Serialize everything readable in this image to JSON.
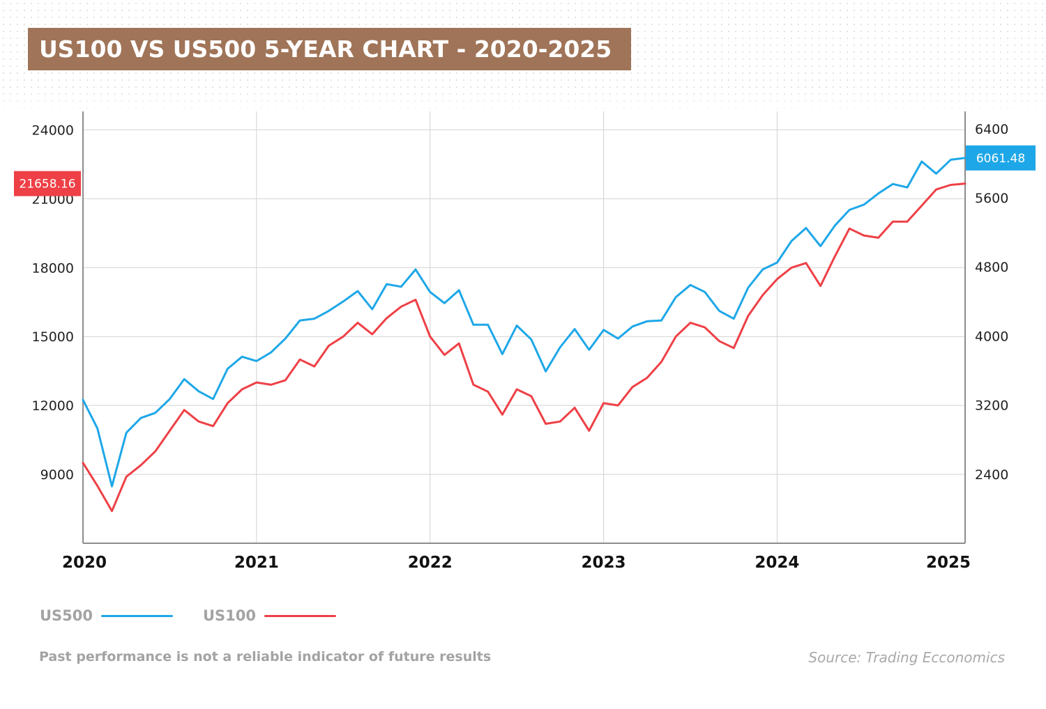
{
  "title": "US100 VS US500 5-YEAR CHART - 2020-2025",
  "legend": [
    {
      "label": "US500",
      "color": "#1ea7e8"
    },
    {
      "label": "US100",
      "color": "#ee4046"
    }
  ],
  "footer": {
    "disclaimer": "Past performance is not a reliable indicator of future results",
    "source": "Source: Trading Ecconomics"
  },
  "chart_data": {
    "type": "line",
    "grid": true,
    "x_ticks": [
      "2020",
      "2021",
      "2022",
      "2023",
      "2024",
      "2025"
    ],
    "x_range": [
      "2020-01",
      "2025-02"
    ],
    "y_left": {
      "series": "US100",
      "ticks": [
        9000,
        12000,
        15000,
        18000,
        21000,
        24000
      ],
      "range": [
        6000,
        24800
      ]
    },
    "y_right": {
      "series": "US500",
      "ticks": [
        2400,
        3200,
        4000,
        4800,
        5600,
        6400
      ],
      "range": [
        1600,
        6600
      ]
    },
    "last_values": {
      "US100": "21658.16",
      "US500": "6061.48"
    },
    "series": [
      {
        "name": "US500",
        "axis": "right",
        "color": "#1ea7e8",
        "x": [
          "2020-01",
          "2020-02",
          "2020-03",
          "2020-04",
          "2020-05",
          "2020-06",
          "2020-07",
          "2020-08",
          "2020-09",
          "2020-10",
          "2020-11",
          "2020-12",
          "2021-01",
          "2021-02",
          "2021-03",
          "2021-04",
          "2021-05",
          "2021-06",
          "2021-07",
          "2021-08",
          "2021-09",
          "2021-10",
          "2021-11",
          "2021-12",
          "2022-01",
          "2022-02",
          "2022-03",
          "2022-04",
          "2022-05",
          "2022-06",
          "2022-07",
          "2022-08",
          "2022-09",
          "2022-10",
          "2022-11",
          "2022-12",
          "2023-01",
          "2023-02",
          "2023-03",
          "2023-04",
          "2023-05",
          "2023-06",
          "2023-07",
          "2023-08",
          "2023-09",
          "2023-10",
          "2023-11",
          "2023-12",
          "2024-01",
          "2024-02",
          "2024-03",
          "2024-04",
          "2024-05",
          "2024-06",
          "2024-07",
          "2024-08",
          "2024-09",
          "2024-10",
          "2024-11",
          "2024-12",
          "2025-01",
          "2025-02"
        ],
        "values": [
          3260,
          2930,
          2260,
          2880,
          3050,
          3110,
          3270,
          3500,
          3360,
          3270,
          3620,
          3760,
          3710,
          3810,
          3970,
          4180,
          4200,
          4290,
          4400,
          4520,
          4310,
          4600,
          4570,
          4770,
          4510,
          4380,
          4530,
          4130,
          4130,
          3790,
          4120,
          3960,
          3590,
          3870,
          4080,
          3840,
          4070,
          3970,
          4110,
          4170,
          4180,
          4450,
          4590,
          4510,
          4290,
          4200,
          4560,
          4770,
          4850,
          5100,
          5250,
          5040,
          5280,
          5460,
          5520,
          5650,
          5760,
          5720,
          6020,
          5880,
          6040,
          6061.48
        ]
      },
      {
        "name": "US100",
        "axis": "left",
        "color": "#ee4046",
        "x": [
          "2020-01",
          "2020-02",
          "2020-03",
          "2020-04",
          "2020-05",
          "2020-06",
          "2020-07",
          "2020-08",
          "2020-09",
          "2020-10",
          "2020-11",
          "2020-12",
          "2021-01",
          "2021-02",
          "2021-03",
          "2021-04",
          "2021-05",
          "2021-06",
          "2021-07",
          "2021-08",
          "2021-09",
          "2021-10",
          "2021-11",
          "2021-12",
          "2022-01",
          "2022-02",
          "2022-03",
          "2022-04",
          "2022-05",
          "2022-06",
          "2022-07",
          "2022-08",
          "2022-09",
          "2022-10",
          "2022-11",
          "2022-12",
          "2023-01",
          "2023-02",
          "2023-03",
          "2023-04",
          "2023-05",
          "2023-06",
          "2023-07",
          "2023-08",
          "2023-09",
          "2023-10",
          "2023-11",
          "2023-12",
          "2024-01",
          "2024-02",
          "2024-03",
          "2024-04",
          "2024-05",
          "2024-06",
          "2024-07",
          "2024-08",
          "2024-09",
          "2024-10",
          "2024-11",
          "2024-12",
          "2025-01",
          "2025-02"
        ],
        "values": [
          9500,
          8500,
          7400,
          8900,
          9400,
          10000,
          10900,
          11800,
          11300,
          11100,
          12100,
          12700,
          13000,
          12900,
          13100,
          14000,
          13700,
          14600,
          15000,
          15600,
          15100,
          15800,
          16300,
          16600,
          15000,
          14200,
          14700,
          12900,
          12600,
          11600,
          12700,
          12400,
          11200,
          11300,
          11900,
          10900,
          12100,
          12000,
          12800,
          13200,
          13900,
          15000,
          15600,
          15400,
          14800,
          14500,
          15900,
          16800,
          17500,
          18000,
          18200,
          17200,
          18500,
          19700,
          19400,
          19300,
          20000,
          20000,
          20700,
          21400,
          21600,
          21658.16
        ]
      }
    ]
  }
}
